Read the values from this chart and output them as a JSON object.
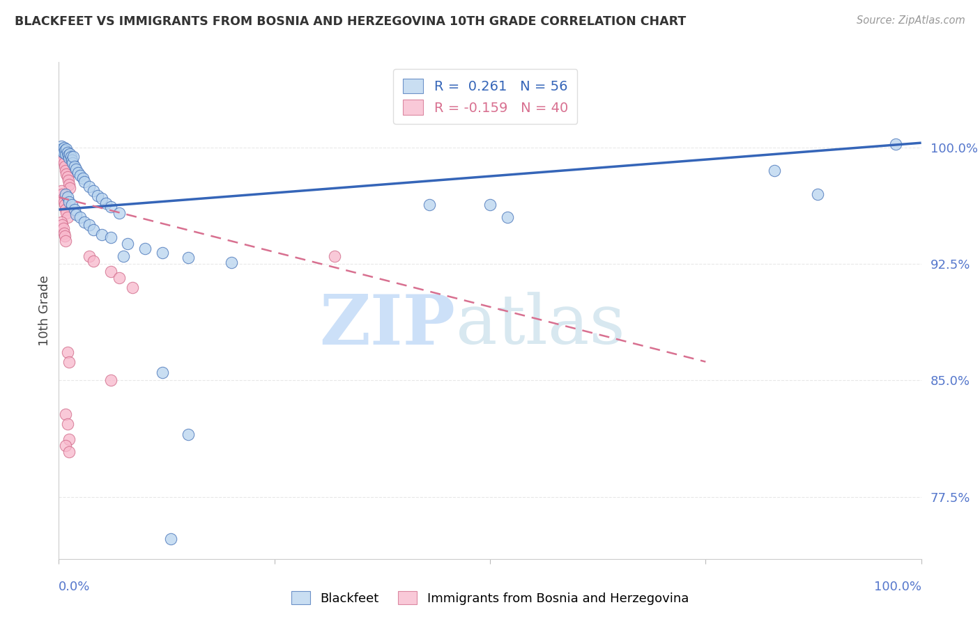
{
  "title": "BLACKFEET VS IMMIGRANTS FROM BOSNIA AND HERZEGOVINA 10TH GRADE CORRELATION CHART",
  "source": "Source: ZipAtlas.com",
  "ylabel": "10th Grade",
  "ylabel_ticks": [
    "77.5%",
    "85.0%",
    "92.5%",
    "100.0%"
  ],
  "ylabel_values": [
    0.775,
    0.85,
    0.925,
    1.0
  ],
  "xmin": 0.0,
  "xmax": 1.0,
  "ymin": 0.735,
  "ymax": 1.055,
  "legend_blue_r": "R =  0.261",
  "legend_blue_n": "N = 56",
  "legend_pink_r": "R = -0.159",
  "legend_pink_n": "N = 40",
  "legend_label_blue": "Blackfeet",
  "legend_label_pink": "Immigrants from Bosnia and Herzegovina",
  "blue_scatter": [
    [
      0.002,
      0.998
    ],
    [
      0.003,
      1.001
    ],
    [
      0.004,
      0.999
    ],
    [
      0.005,
      0.997
    ],
    [
      0.006,
      1.0
    ],
    [
      0.007,
      0.998
    ],
    [
      0.008,
      0.996
    ],
    [
      0.009,
      0.999
    ],
    [
      0.01,
      0.997
    ],
    [
      0.011,
      0.995
    ],
    [
      0.012,
      0.993
    ],
    [
      0.013,
      0.996
    ],
    [
      0.014,
      0.994
    ],
    [
      0.015,
      0.992
    ],
    [
      0.016,
      0.99
    ],
    [
      0.017,
      0.994
    ],
    [
      0.018,
      0.988
    ],
    [
      0.02,
      0.986
    ],
    [
      0.022,
      0.984
    ],
    [
      0.025,
      0.982
    ],
    [
      0.028,
      0.98
    ],
    [
      0.03,
      0.978
    ],
    [
      0.035,
      0.975
    ],
    [
      0.04,
      0.972
    ],
    [
      0.045,
      0.969
    ],
    [
      0.05,
      0.967
    ],
    [
      0.055,
      0.964
    ],
    [
      0.06,
      0.962
    ],
    [
      0.07,
      0.958
    ],
    [
      0.008,
      0.97
    ],
    [
      0.01,
      0.968
    ],
    [
      0.012,
      0.965
    ],
    [
      0.015,
      0.963
    ],
    [
      0.018,
      0.96
    ],
    [
      0.02,
      0.957
    ],
    [
      0.025,
      0.955
    ],
    [
      0.03,
      0.952
    ],
    [
      0.035,
      0.95
    ],
    [
      0.04,
      0.947
    ],
    [
      0.05,
      0.944
    ],
    [
      0.06,
      0.942
    ],
    [
      0.08,
      0.938
    ],
    [
      0.1,
      0.935
    ],
    [
      0.12,
      0.932
    ],
    [
      0.15,
      0.929
    ],
    [
      0.2,
      0.926
    ],
    [
      0.075,
      0.93
    ],
    [
      0.5,
      0.963
    ],
    [
      0.52,
      0.955
    ],
    [
      0.12,
      0.855
    ],
    [
      0.15,
      0.815
    ],
    [
      0.13,
      0.748
    ],
    [
      0.83,
      0.985
    ],
    [
      0.88,
      0.97
    ],
    [
      0.97,
      1.002
    ],
    [
      0.43,
      0.963
    ]
  ],
  "pink_scatter": [
    [
      0.002,
      0.998
    ],
    [
      0.003,
      0.996
    ],
    [
      0.004,
      0.994
    ],
    [
      0.005,
      0.992
    ],
    [
      0.006,
      0.99
    ],
    [
      0.007,
      0.988
    ],
    [
      0.008,
      0.985
    ],
    [
      0.009,
      0.983
    ],
    [
      0.01,
      0.981
    ],
    [
      0.011,
      0.979
    ],
    [
      0.012,
      0.976
    ],
    [
      0.013,
      0.974
    ],
    [
      0.003,
      0.972
    ],
    [
      0.004,
      0.97
    ],
    [
      0.005,
      0.967
    ],
    [
      0.006,
      0.965
    ],
    [
      0.007,
      0.963
    ],
    [
      0.008,
      0.96
    ],
    [
      0.009,
      0.958
    ],
    [
      0.01,
      0.955
    ],
    [
      0.003,
      0.952
    ],
    [
      0.004,
      0.95
    ],
    [
      0.005,
      0.948
    ],
    [
      0.006,
      0.945
    ],
    [
      0.007,
      0.943
    ],
    [
      0.008,
      0.94
    ],
    [
      0.035,
      0.93
    ],
    [
      0.04,
      0.927
    ],
    [
      0.06,
      0.92
    ],
    [
      0.07,
      0.916
    ],
    [
      0.085,
      0.91
    ],
    [
      0.01,
      0.868
    ],
    [
      0.012,
      0.862
    ],
    [
      0.06,
      0.85
    ],
    [
      0.008,
      0.828
    ],
    [
      0.01,
      0.822
    ],
    [
      0.012,
      0.812
    ],
    [
      0.008,
      0.808
    ],
    [
      0.012,
      0.804
    ],
    [
      0.32,
      0.93
    ]
  ],
  "blue_line_x": [
    0.0,
    1.0
  ],
  "blue_line_y": [
    0.96,
    1.003
  ],
  "pink_line_x": [
    0.0,
    0.75
  ],
  "pink_line_y": [
    0.968,
    0.862
  ],
  "watermark_zip": "ZIP",
  "watermark_atlas": "atlas",
  "dot_size": 140,
  "blue_face_color": "#b8d4ee",
  "blue_edge_color": "#4472b8",
  "pink_face_color": "#f8b8cc",
  "pink_edge_color": "#d06888",
  "blue_line_color": "#3565b8",
  "pink_line_color": "#d87090",
  "background_color": "#ffffff",
  "grid_color": "#e8e8e8",
  "watermark_zip_color": "#cce0f8",
  "watermark_atlas_color": "#d8e8f0"
}
